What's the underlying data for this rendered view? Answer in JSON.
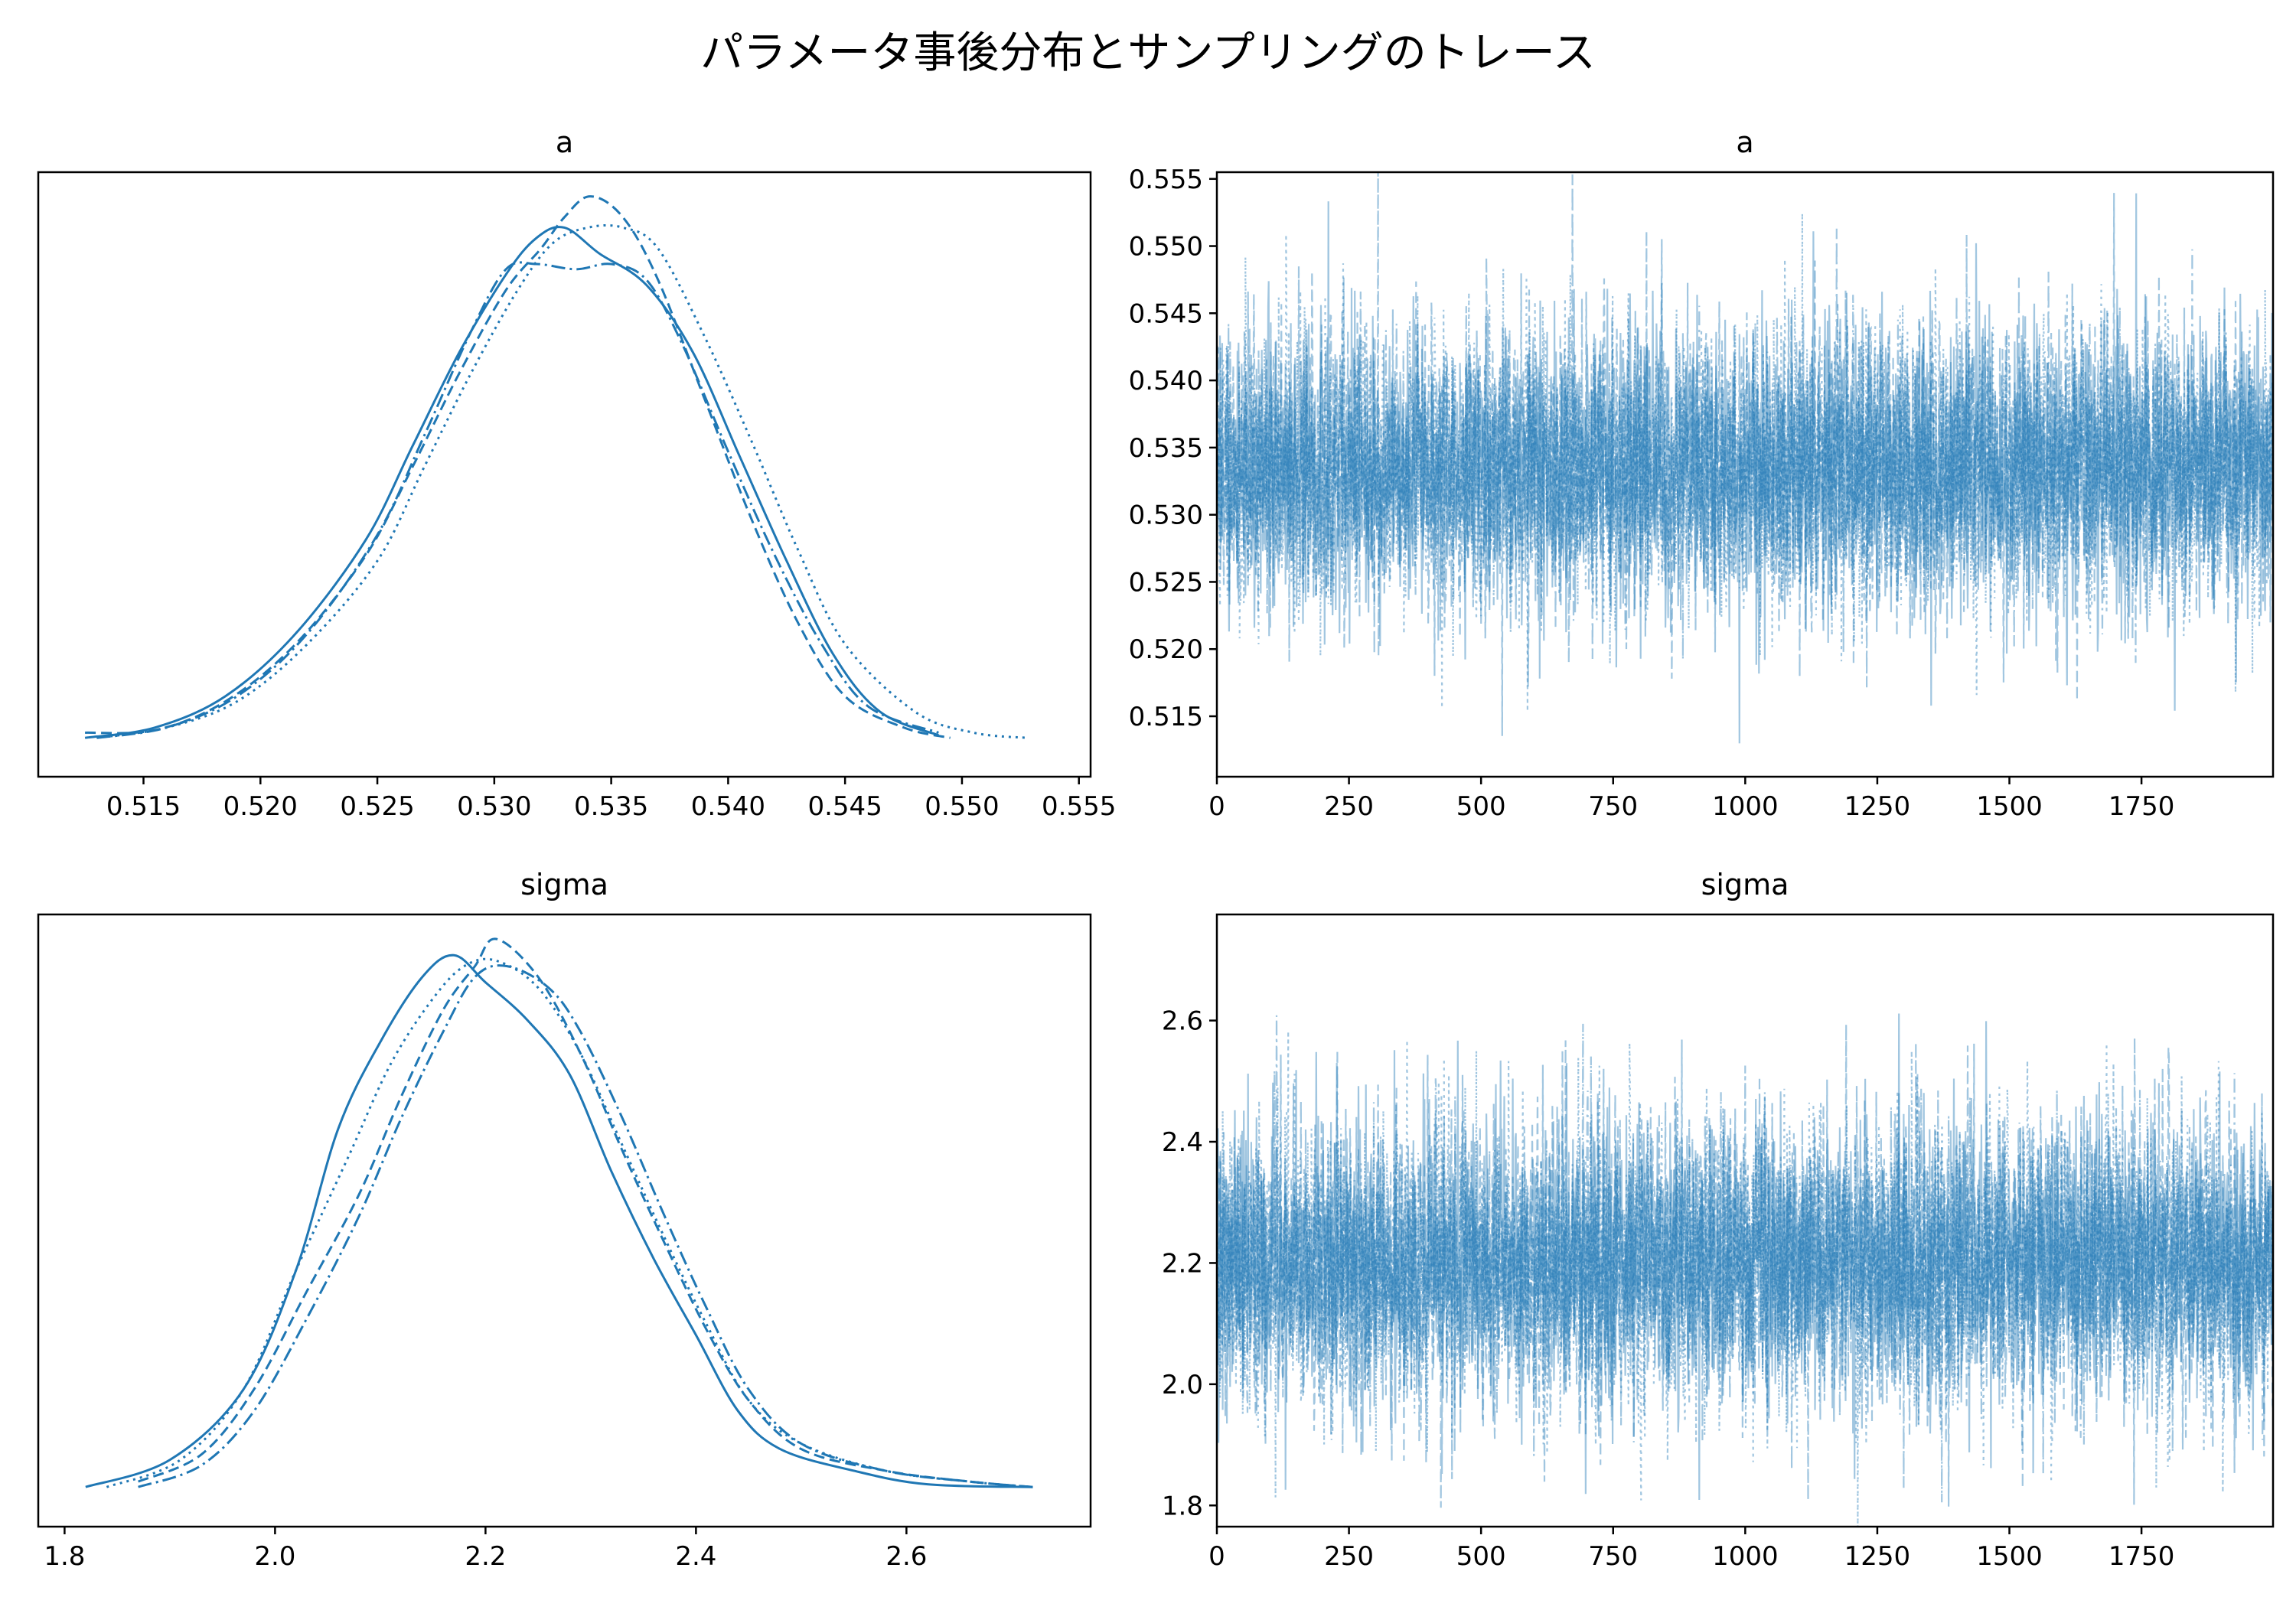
{
  "figure": {
    "title": "パラメータ事後分布とサンプリングのトレース"
  },
  "colors": {
    "line": "#1f77b4",
    "trace": "#1f77b4"
  },
  "chart_data": [
    {
      "type": "line",
      "panel": "density-a",
      "title": "a",
      "xlim": [
        0.5105,
        0.5555
      ],
      "xticks": [
        "0.515",
        "0.520",
        "0.525",
        "0.530",
        "0.535",
        "0.540",
        "0.545",
        "0.550",
        "0.555"
      ],
      "xtick_values": [
        0.515,
        0.52,
        0.525,
        0.53,
        0.535,
        0.54,
        0.545,
        0.55,
        0.555
      ],
      "yticks": [],
      "series": [
        {
          "style": "solid",
          "x": [
            0.5125,
            0.5155,
            0.5185,
            0.5215,
            0.5245,
            0.5265,
            0.5285,
            0.5305,
            0.5318,
            0.533,
            0.5345,
            0.5365,
            0.5385,
            0.5405,
            0.5425,
            0.5445,
            0.5465,
            0.549
          ],
          "y": [
            0.02,
            0.04,
            0.1,
            0.22,
            0.4,
            0.58,
            0.76,
            0.91,
            0.98,
            1.0,
            0.95,
            0.89,
            0.76,
            0.56,
            0.36,
            0.18,
            0.07,
            0.025
          ]
        },
        {
          "style": "dashed",
          "x": [
            0.5125,
            0.5155,
            0.5185,
            0.5215,
            0.5245,
            0.5265,
            0.5285,
            0.5305,
            0.532,
            0.533,
            0.5341,
            0.5355,
            0.537,
            0.539,
            0.541,
            0.543,
            0.545,
            0.5475,
            0.5495
          ],
          "y": [
            0.03,
            0.035,
            0.09,
            0.2,
            0.37,
            0.54,
            0.72,
            0.88,
            0.96,
            1.02,
            1.06,
            1.02,
            0.9,
            0.67,
            0.44,
            0.24,
            0.1,
            0.04,
            0.02
          ]
        },
        {
          "style": "dotted",
          "x": [
            0.513,
            0.516,
            0.519,
            0.522,
            0.525,
            0.527,
            0.529,
            0.531,
            0.5325,
            0.534,
            0.5355,
            0.537,
            0.539,
            0.541,
            0.543,
            0.545,
            0.548,
            0.5505,
            0.5528
          ],
          "y": [
            0.02,
            0.04,
            0.09,
            0.2,
            0.36,
            0.54,
            0.72,
            0.88,
            0.97,
            1.0,
            1.0,
            0.96,
            0.79,
            0.59,
            0.38,
            0.2,
            0.07,
            0.03,
            0.02
          ]
        },
        {
          "style": "dashdot",
          "x": [
            0.513,
            0.516,
            0.519,
            0.522,
            0.525,
            0.527,
            0.529,
            0.5305,
            0.5318,
            0.5335,
            0.535,
            0.5365,
            0.538,
            0.54,
            0.542,
            0.544,
            0.546,
            0.549
          ],
          "y": [
            0.02,
            0.04,
            0.1,
            0.22,
            0.41,
            0.6,
            0.8,
            0.92,
            0.93,
            0.92,
            0.93,
            0.9,
            0.78,
            0.57,
            0.37,
            0.2,
            0.08,
            0.03
          ]
        }
      ]
    },
    {
      "type": "line",
      "panel": "trace-a",
      "title": "a",
      "xlim": [
        0,
        1999
      ],
      "ylim": [
        0.5105,
        0.5555
      ],
      "xticks": [
        "0",
        "250",
        "500",
        "750",
        "1000",
        "1250",
        "1500",
        "1750"
      ],
      "xtick_values": [
        0,
        250,
        500,
        750,
        1000,
        1250,
        1500,
        1750
      ],
      "yticks": [
        "0.515",
        "0.520",
        "0.525",
        "0.530",
        "0.535",
        "0.540",
        "0.545",
        "0.550",
        "0.555"
      ],
      "ytick_values": [
        0.515,
        0.52,
        0.525,
        0.53,
        0.535,
        0.54,
        0.545,
        0.55,
        0.555
      ],
      "trace": {
        "center": 0.5334,
        "sd": 0.0053,
        "draws": 2000,
        "chains": 4
      }
    },
    {
      "type": "line",
      "panel": "density-sigma",
      "title": "sigma",
      "xlim": [
        1.775,
        2.775
      ],
      "xticks": [
        "1.8",
        "2.0",
        "2.2",
        "2.4",
        "2.6"
      ],
      "xtick_values": [
        1.8,
        2.0,
        2.2,
        2.4,
        2.6
      ],
      "yticks": [],
      "series": [
        {
          "style": "solid",
          "x": [
            1.82,
            1.9,
            1.97,
            2.02,
            2.06,
            2.1,
            2.14,
            2.17,
            2.2,
            2.24,
            2.28,
            2.32,
            2.36,
            2.4,
            2.44,
            2.48,
            2.55,
            2.62,
            2.72
          ],
          "y": [
            0.02,
            0.07,
            0.2,
            0.42,
            0.68,
            0.84,
            0.96,
            1.0,
            0.95,
            0.88,
            0.78,
            0.6,
            0.44,
            0.3,
            0.16,
            0.09,
            0.05,
            0.025,
            0.02
          ]
        },
        {
          "style": "dashed",
          "x": [
            1.87,
            1.93,
            1.98,
            2.03,
            2.08,
            2.12,
            2.16,
            2.19,
            2.21,
            2.25,
            2.29,
            2.33,
            2.37,
            2.41,
            2.45,
            2.5,
            2.58,
            2.66,
            2.72
          ],
          "y": [
            0.03,
            0.08,
            0.2,
            0.38,
            0.56,
            0.74,
            0.9,
            0.98,
            1.03,
            0.96,
            0.82,
            0.64,
            0.47,
            0.31,
            0.18,
            0.09,
            0.05,
            0.03,
            0.02
          ]
        },
        {
          "style": "dotted",
          "x": [
            1.84,
            1.91,
            1.97,
            2.02,
            2.07,
            2.11,
            2.15,
            2.18,
            2.21,
            2.25,
            2.29,
            2.33,
            2.37,
            2.41,
            2.45,
            2.5,
            2.58,
            2.66,
            2.72
          ],
          "y": [
            0.02,
            0.07,
            0.2,
            0.42,
            0.63,
            0.8,
            0.92,
            0.98,
            0.99,
            0.94,
            0.82,
            0.65,
            0.48,
            0.32,
            0.18,
            0.1,
            0.05,
            0.03,
            0.02
          ]
        },
        {
          "style": "dashdot",
          "x": [
            1.87,
            1.93,
            1.98,
            2.03,
            2.08,
            2.12,
            2.16,
            2.19,
            2.22,
            2.26,
            2.29,
            2.33,
            2.37,
            2.41,
            2.45,
            2.5,
            2.58,
            2.66,
            2.72
          ],
          "y": [
            0.02,
            0.06,
            0.16,
            0.33,
            0.52,
            0.7,
            0.86,
            0.96,
            0.98,
            0.94,
            0.86,
            0.7,
            0.52,
            0.35,
            0.2,
            0.1,
            0.05,
            0.03,
            0.02
          ]
        }
      ]
    },
    {
      "type": "line",
      "panel": "trace-sigma",
      "title": "sigma",
      "xlim": [
        0,
        1999
      ],
      "ylim": [
        1.765,
        2.775
      ],
      "xticks": [
        "0",
        "250",
        "500",
        "750",
        "1000",
        "1250",
        "1500",
        "1750"
      ],
      "xtick_values": [
        0,
        250,
        500,
        750,
        1000,
        1250,
        1500,
        1750
      ],
      "yticks": [
        "1.8",
        "2.0",
        "2.2",
        "2.4",
        "2.6"
      ],
      "ytick_values": [
        1.8,
        2.0,
        2.2,
        2.4,
        2.6
      ],
      "trace": {
        "center": 2.2,
        "sd": 0.12,
        "draws": 2000,
        "chains": 4
      }
    }
  ]
}
